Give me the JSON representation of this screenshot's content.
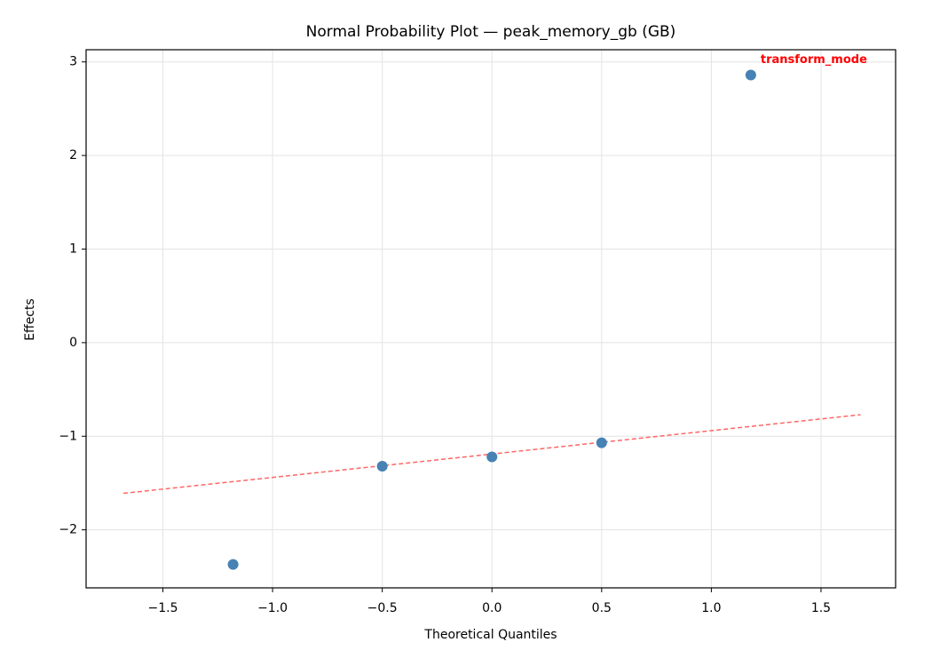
{
  "chart_data": {
    "type": "scatter",
    "title": "Normal Probability Plot — peak_memory_gb (GB)",
    "x_label": "Theoretical Quantiles",
    "y_label": "Effects",
    "points": {
      "x": [
        -1.18,
        -0.5,
        0,
        0.5,
        1.18
      ],
      "values": [
        -2.37,
        -1.32,
        -1.22,
        -1.07,
        2.86
      ],
      "color": "#4682b4",
      "labels": [
        null,
        null,
        null,
        null,
        "transform_mode"
      ],
      "label_color": "#ff0000"
    },
    "reference_line": {
      "x": [
        -1.68,
        1.68
      ],
      "values": [
        -1.61,
        -0.77
      ],
      "color": "#ff6666",
      "dashed": true
    },
    "xlim": [
      -1.85,
      1.84
    ],
    "ylim": [
      -2.62,
      3.13
    ],
    "xticks": [
      {
        "value": -1.5,
        "label": "−1.5"
      },
      {
        "value": -1,
        "label": "−1.0"
      },
      {
        "value": -0.5,
        "label": "−0.5"
      },
      {
        "value": 0,
        "label": "0.0"
      },
      0.5,
      {
        "value": 1,
        "label": "1.0"
      },
      1.5
    ],
    "yticks": [
      {
        "value": -2,
        "label": "−2"
      },
      {
        "value": -1,
        "label": "−1"
      },
      0,
      1,
      2,
      3
    ],
    "grid": true
  }
}
